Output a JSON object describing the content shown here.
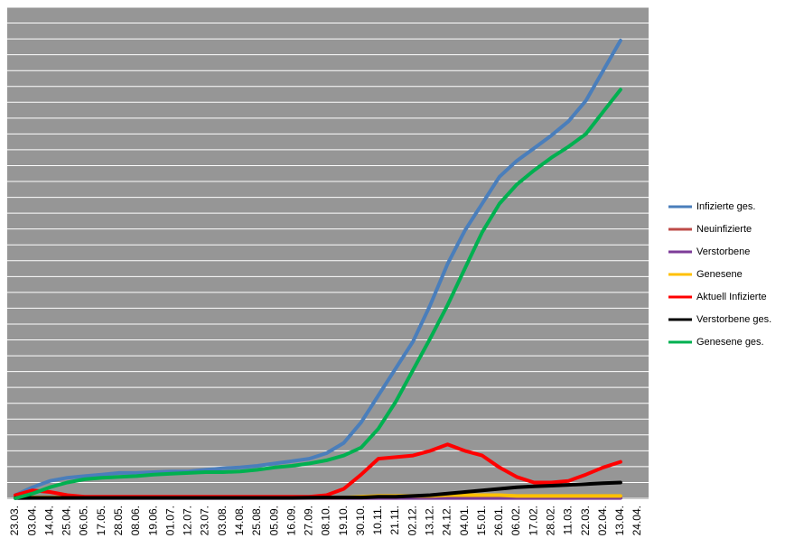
{
  "chart_data": {
    "type": "line",
    "categories": [
      "23.03.",
      "03.04.",
      "14.04.",
      "25.04.",
      "06.05.",
      "17.05.",
      "28.05.",
      "08.06.",
      "19.06.",
      "01.07.",
      "12.07.",
      "23.07.",
      "03.08.",
      "14.08.",
      "25.08.",
      "05.09.",
      "16.09.",
      "27.09.",
      "08.10.",
      "19.10.",
      "30.10.",
      "10.11.",
      "21.11.",
      "02.12.",
      "13.12.",
      "24.12.",
      "04.01.",
      "15.01.",
      "26.01.",
      "06.02.",
      "17.02.",
      "28.02.",
      "11.03.",
      "22.03.",
      "02.04.",
      "13.04.",
      "24.04."
    ],
    "series": [
      {
        "name": "Infizierte ges.",
        "color": "#4a7ebb",
        "values": [
          0.2,
          0.7,
          1.1,
          1.3,
          1.4,
          1.5,
          1.6,
          1.6,
          1.65,
          1.7,
          1.7,
          1.8,
          1.9,
          1.95,
          2.05,
          2.2,
          2.35,
          2.5,
          2.85,
          3.5,
          4.8,
          6.5,
          8.2,
          9.9,
          12.2,
          14.8,
          16.9,
          18.6,
          20.3,
          21.3,
          22.1,
          22.9,
          23.8,
          25.1,
          27,
          28.9,
          null
        ]
      },
      {
        "name": "Neuinfizierte",
        "color": "#be4b48",
        "values": [
          0.05,
          0.05,
          0.05,
          0.05,
          0.05,
          0.05,
          0.05,
          0.05,
          0.05,
          0.05,
          0.05,
          0.05,
          0.05,
          0.05,
          0.05,
          0.05,
          0.05,
          0.05,
          0.05,
          0.05,
          0.05,
          0.05,
          0.05,
          0.05,
          0.05,
          0.05,
          0.05,
          0.05,
          0.05,
          0.05,
          0.05,
          0.05,
          0.05,
          0.05,
          0.05,
          0.05,
          null
        ]
      },
      {
        "name": "Verstorbene",
        "color": "#7d3c98",
        "values": [
          0.02,
          0.02,
          0.02,
          0.02,
          0.02,
          0.02,
          0.02,
          0.02,
          0.02,
          0.02,
          0.02,
          0.02,
          0.02,
          0.02,
          0.02,
          0.02,
          0.02,
          0.02,
          0.02,
          0.02,
          0.02,
          0.02,
          0.02,
          0.02,
          0.02,
          0.02,
          0.02,
          0.02,
          0.02,
          0.02,
          0.02,
          0.02,
          0.02,
          0.02,
          0.02,
          0.02,
          null
        ]
      },
      {
        "name": "Genesene",
        "color": "#ffc000",
        "values": [
          0.05,
          0.05,
          0.05,
          0.05,
          0.05,
          0.05,
          0.05,
          0.05,
          0.05,
          0.05,
          0.05,
          0.05,
          0.05,
          0.05,
          0.05,
          0.05,
          0.05,
          0.05,
          0.05,
          0.05,
          0.1,
          0.15,
          0.15,
          0.15,
          0.15,
          0.2,
          0.2,
          0.2,
          0.2,
          0.15,
          0.15,
          0.15,
          0.15,
          0.15,
          0.15,
          0.15,
          null
        ]
      },
      {
        "name": "Aktuell Infizierte",
        "color": "#ff0000",
        "values": [
          0.2,
          0.5,
          0.4,
          0.2,
          0.1,
          0.1,
          0.1,
          0.1,
          0.1,
          0.1,
          0.1,
          0.1,
          0.1,
          0.1,
          0.1,
          0.1,
          0.1,
          0.1,
          0.2,
          0.6,
          1.5,
          2.5,
          2.6,
          2.7,
          3.0,
          3.4,
          3.0,
          2.7,
          1.95,
          1.35,
          1.0,
          1.0,
          1.1,
          1.5,
          1.95,
          2.3,
          null
        ]
      },
      {
        "name": "Verstorbene ges.",
        "color": "#000000",
        "values": [
          0.02,
          0.03,
          0.03,
          0.03,
          0.03,
          0.03,
          0.03,
          0.03,
          0.03,
          0.03,
          0.03,
          0.03,
          0.03,
          0.03,
          0.03,
          0.03,
          0.03,
          0.04,
          0.05,
          0.05,
          0.05,
          0.1,
          0.1,
          0.15,
          0.2,
          0.3,
          0.4,
          0.5,
          0.6,
          0.7,
          0.75,
          0.8,
          0.85,
          0.9,
          0.95,
          1.0,
          null
        ]
      },
      {
        "name": "Genesene ges.",
        "color": "#00b050",
        "values": [
          0,
          0.3,
          0.7,
          1.0,
          1.2,
          1.3,
          1.35,
          1.4,
          1.5,
          1.55,
          1.6,
          1.65,
          1.65,
          1.7,
          1.8,
          1.95,
          2.05,
          2.2,
          2.4,
          2.7,
          3.2,
          4.4,
          6.1,
          8.1,
          10.1,
          12.2,
          14.5,
          16.8,
          18.6,
          19.8,
          20.7,
          21.5,
          22.2,
          23,
          24.4,
          25.8,
          null
        ]
      }
    ],
    "ylim": [
      0,
      31
    ],
    "yticks": [
      0,
      1,
      2,
      3,
      4,
      5,
      6,
      7,
      8,
      9,
      10,
      11,
      12,
      13,
      14,
      15,
      16,
      17,
      18,
      19,
      20,
      21,
      22,
      23,
      24,
      25,
      26,
      27,
      28,
      29,
      30,
      31
    ],
    "grid": true,
    "background": "#969696",
    "legend": "right"
  }
}
